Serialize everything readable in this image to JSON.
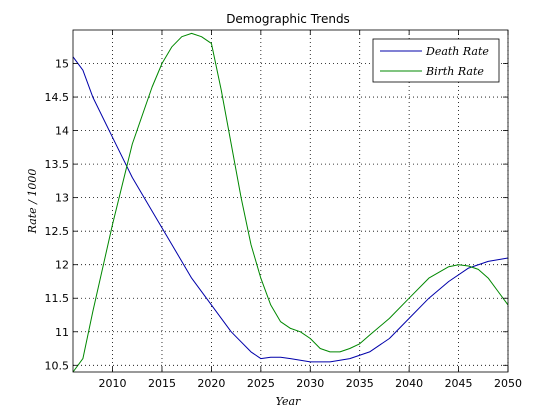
{
  "chart_data": {
    "type": "line",
    "title": "Demographic Trends",
    "xlabel": "Year",
    "ylabel": "Rate / 1000",
    "xlim": [
      2006,
      2050
    ],
    "ylim": [
      10.4,
      15.5
    ],
    "xticks": [
      2010,
      2015,
      2020,
      2025,
      2030,
      2035,
      2040,
      2045,
      2050
    ],
    "yticks": [
      10.5,
      11,
      11.5,
      12,
      12.5,
      13,
      13.5,
      14,
      14.5,
      15
    ],
    "grid": true,
    "legend_position": "top-right",
    "series": [
      {
        "name": "Death Rate",
        "color": "#0000aa",
        "x": [
          2006,
          2007,
          2008,
          2010,
          2012,
          2014,
          2016,
          2018,
          2020,
          2022,
          2024,
          2025,
          2026,
          2027,
          2028,
          2030,
          2032,
          2034,
          2036,
          2038,
          2040,
          2042,
          2044,
          2046,
          2048,
          2050
        ],
        "y": [
          15.1,
          14.9,
          14.5,
          13.9,
          13.3,
          12.8,
          12.3,
          11.8,
          11.4,
          11.0,
          10.7,
          10.6,
          10.62,
          10.62,
          10.6,
          10.55,
          10.55,
          10.6,
          10.7,
          10.9,
          11.2,
          11.5,
          11.75,
          11.95,
          12.05,
          12.1
        ]
      },
      {
        "name": "Birth Rate",
        "color": "#008800",
        "x": [
          2006,
          2007,
          2008,
          2010,
          2012,
          2014,
          2015,
          2016,
          2017,
          2018,
          2019,
          2020,
          2021,
          2022,
          2023,
          2024,
          2025,
          2026,
          2027,
          2028,
          2029,
          2030,
          2031,
          2032,
          2033,
          2034,
          2035,
          2036,
          2038,
          2040,
          2042,
          2044,
          2045,
          2046,
          2047,
          2048,
          2049,
          2050
        ],
        "y": [
          10.4,
          10.6,
          11.3,
          12.6,
          13.8,
          14.65,
          15.0,
          15.25,
          15.4,
          15.45,
          15.4,
          15.3,
          14.6,
          13.8,
          13.0,
          12.3,
          11.8,
          11.4,
          11.15,
          11.05,
          11.0,
          10.9,
          10.75,
          10.7,
          10.7,
          10.75,
          10.82,
          10.95,
          11.2,
          11.5,
          11.8,
          11.97,
          12.0,
          11.98,
          11.93,
          11.8,
          11.6,
          11.4
        ]
      }
    ]
  }
}
